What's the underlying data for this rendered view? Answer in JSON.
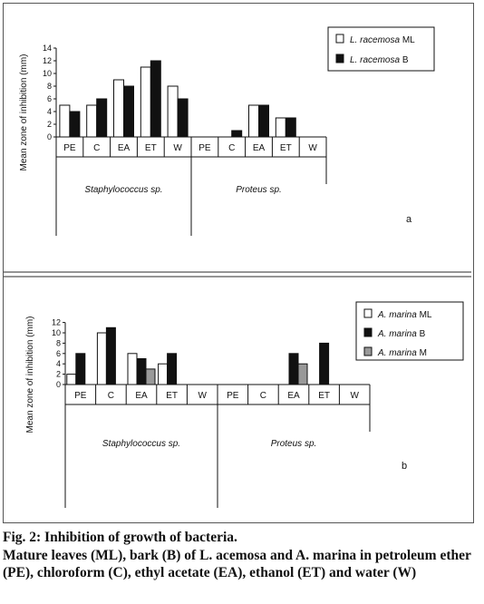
{
  "caption": {
    "title": "Fig. 2: Inhibition of growth of bacteria.",
    "body": "Mature leaves (ML), bark (B) of L. acemosa and A. marina in petroleum ether (PE), chloroform (C), ethyl acetate (EA), ethanol (ET) and water (W)"
  },
  "chart_data": [
    {
      "type": "bar",
      "panel_label": "a",
      "ylabel": "Mean zone of inhibition (mm)",
      "ylim": [
        0,
        14
      ],
      "yticks": [
        0,
        2,
        4,
        6,
        8,
        10,
        12,
        14
      ],
      "groups": [
        {
          "name": "Staphylococcus sp.",
          "categories": [
            "PE",
            "C",
            "EA",
            "ET",
            "W"
          ]
        },
        {
          "name": "Proteus sp.",
          "categories": [
            "PE",
            "C",
            "EA",
            "ET",
            "W"
          ]
        }
      ],
      "legend_position": "top-right",
      "series": [
        {
          "name": "L. racemosa ML",
          "color": "#ffffff",
          "values": [
            5,
            5,
            9,
            11,
            8,
            0,
            0,
            5,
            3,
            0
          ]
        },
        {
          "name": "L. racemosa B",
          "color": "#111111",
          "values": [
            4,
            6,
            8,
            12,
            6,
            0,
            1,
            5,
            3,
            0
          ]
        }
      ]
    },
    {
      "type": "bar",
      "panel_label": "b",
      "ylabel": "Mean zone of inhibition (mm)",
      "ylim": [
        0,
        12
      ],
      "yticks": [
        0,
        2,
        4,
        6,
        8,
        10,
        12
      ],
      "groups": [
        {
          "name": "Staphylococcus sp.",
          "categories": [
            "PE",
            "C",
            "EA",
            "ET",
            "W"
          ]
        },
        {
          "name": "Proteus sp.",
          "categories": [
            "PE",
            "C",
            "EA",
            "ET",
            "W"
          ]
        }
      ],
      "legend_position": "top-right",
      "series": [
        {
          "name": "A. marina ML",
          "color": "#ffffff",
          "values": [
            2,
            10,
            6,
            4,
            0,
            0,
            0,
            0,
            0,
            0
          ]
        },
        {
          "name": "A. marina B",
          "color": "#111111",
          "values": [
            6,
            11,
            5,
            6,
            0,
            0,
            0,
            6,
            8,
            0
          ]
        },
        {
          "name": "A. marina M",
          "color": "#999999",
          "values": [
            0,
            0,
            3,
            0,
            0,
            0,
            0,
            4,
            0,
            0
          ]
        }
      ]
    }
  ]
}
